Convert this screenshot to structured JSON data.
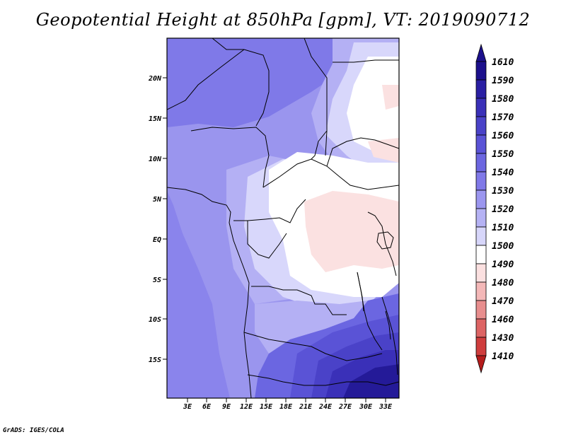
{
  "title": "Geopotential Height at 850hPa [gpm], VT: 2019090712",
  "credit": "GrADS: IGES/COLA",
  "axes": {
    "lat_labels": [
      "20N",
      "15N",
      "10N",
      "5N",
      "EQ",
      "5S",
      "10S",
      "15S"
    ],
    "lon_labels": [
      "3E",
      "6E",
      "9E",
      "12E",
      "15E",
      "18E",
      "21E",
      "24E",
      "27E",
      "30E",
      "33E"
    ]
  },
  "colorbar": {
    "levels": [
      "1610",
      "1590",
      "1580",
      "1570",
      "1560",
      "1550",
      "1540",
      "1530",
      "1520",
      "1510",
      "1500",
      "1490",
      "1480",
      "1470",
      "1460",
      "1430",
      "1410"
    ],
    "colors": [
      "#1c108c",
      "#2a1fa3",
      "#3a30b8",
      "#4a42c8",
      "#5a53d6",
      "#6c66e0",
      "#8079e8",
      "#9b96ef",
      "#b5b2f4",
      "#d7d6fa",
      "#ffffff",
      "#fbe0e0",
      "#f4b8b8",
      "#e88e8e",
      "#dd6464",
      "#cf3d3d",
      "#b51c1c"
    ]
  },
  "field_colors": {
    "c1560": "#6b66e1",
    "c1550": "#7f79e8",
    "c1540": "#9a95ee",
    "c1530": "#b4b0f4",
    "c1520": "#d8d7fb",
    "c1510": "#ffffff",
    "c1500": "#fbe1e1",
    "c1570": "#5a53d6",
    "c1580": "#4a42c8",
    "c1590": "#3a30b8",
    "c1610": "#241a98"
  }
}
